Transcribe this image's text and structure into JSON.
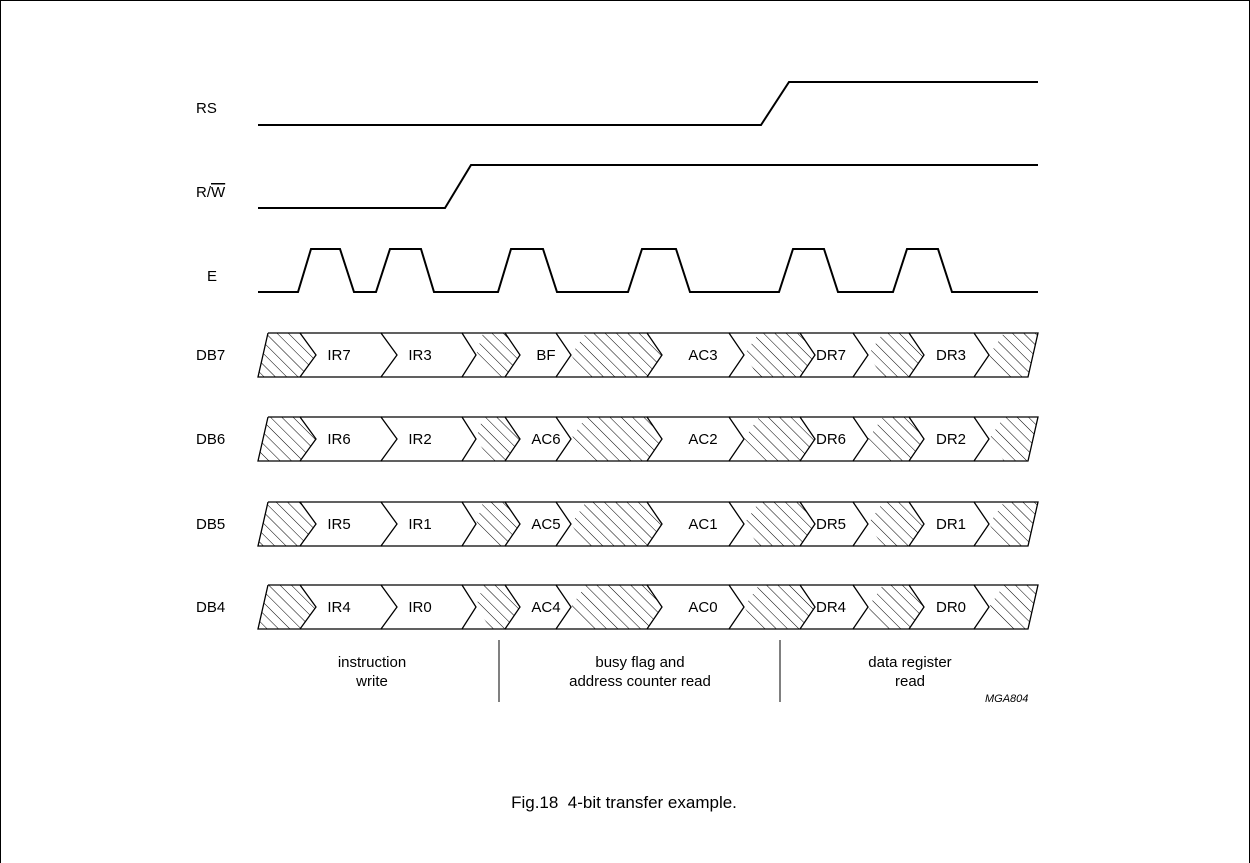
{
  "diagram": {
    "signals": {
      "rs": "RS",
      "rw_r": "R/",
      "rw_w": "W",
      "e": "E",
      "db7": "DB7",
      "db6": "DB6",
      "db5": "DB5",
      "db4": "DB4"
    },
    "bus_values": {
      "db7": [
        "IR7",
        "IR3",
        "BF",
        "AC3",
        "DR7",
        "DR3"
      ],
      "db6": [
        "IR6",
        "IR2",
        "AC6",
        "AC2",
        "DR6",
        "DR2"
      ],
      "db5": [
        "IR5",
        "IR1",
        "AC5",
        "AC1",
        "DR5",
        "DR1"
      ],
      "db4": [
        "IR4",
        "IR0",
        "AC4",
        "AC0",
        "DR4",
        "DR0"
      ]
    },
    "phases": {
      "instruction_write_line1": "instruction",
      "instruction_write_line2": "write",
      "busy_flag_line1": "busy flag and",
      "busy_flag_line2": "address counter read",
      "data_register_line1": "data register",
      "data_register_line2": "read"
    },
    "figure_code": "MGA804",
    "caption": "Fig.18  4-bit transfer example."
  }
}
